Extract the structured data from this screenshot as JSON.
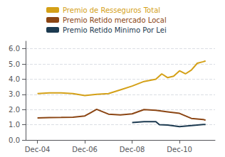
{
  "chart_data": {
    "type": "line",
    "xlim": [
      2003.5,
      2011.5
    ],
    "xticks": [
      {
        "value": 2004,
        "label": "Dec-04"
      },
      {
        "value": 2006,
        "label": "Dec-06"
      },
      {
        "value": 2008,
        "label": "Dec-08"
      },
      {
        "value": 2010,
        "label": "Dec-10"
      }
    ],
    "ylim": [
      0.0,
      6.5
    ],
    "yticks": [
      {
        "value": 0.0,
        "label": "0.0"
      },
      {
        "value": 1.0,
        "label": "1.0"
      },
      {
        "value": 2.0,
        "label": "2.0"
      },
      {
        "value": 3.0,
        "label": "3.0"
      },
      {
        "value": 4.0,
        "label": "4.0"
      },
      {
        "value": 5.0,
        "label": "5.0"
      },
      {
        "value": 6.0,
        "label": "6.0"
      }
    ],
    "grid": true,
    "legend": "upper left",
    "series": [
      {
        "name": "Premio de Resseguros Total",
        "color": "#D4A017",
        "x": [
          2004,
          2004.5,
          2005,
          2005.5,
          2006,
          2006.5,
          2007,
          2007.5,
          2008,
          2008.5,
          2009,
          2009.25,
          2009.5,
          2009.75,
          2010,
          2010.25,
          2010.5,
          2010.75,
          2011,
          2011.1
        ],
        "values": [
          3.05,
          3.1,
          3.1,
          3.05,
          2.92,
          3.0,
          3.05,
          3.3,
          3.55,
          3.85,
          4.0,
          4.35,
          4.1,
          4.2,
          4.55,
          4.35,
          4.6,
          5.05,
          5.15,
          5.2
        ]
      },
      {
        "name": "Premio Retido mercado Local",
        "color": "#8B4513",
        "x": [
          2004,
          2004.5,
          2005,
          2005.5,
          2006,
          2006.25,
          2006.5,
          2007,
          2007.5,
          2008,
          2008.5,
          2009,
          2009.5,
          2010,
          2010.5,
          2011,
          2011.1
        ],
        "values": [
          1.45,
          1.47,
          1.48,
          1.5,
          1.58,
          1.8,
          2.02,
          1.7,
          1.65,
          1.72,
          2.0,
          1.95,
          1.85,
          1.75,
          1.42,
          1.35,
          1.3
        ]
      },
      {
        "name": "Premio Retido Minimo Por Lei",
        "color": "#1C3A50",
        "x": [
          2008,
          2008.5,
          2009,
          2009.15,
          2009.5,
          2010,
          2010.5,
          2011,
          2011.1
        ],
        "values": [
          1.15,
          1.2,
          1.2,
          1.0,
          0.98,
          0.88,
          0.95,
          1.02,
          1.02
        ]
      }
    ]
  }
}
